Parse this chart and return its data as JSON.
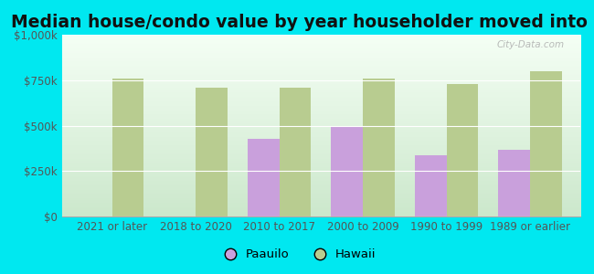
{
  "title": "Median house/condo value by year householder moved into unit",
  "categories": [
    "2021 or later",
    "2018 to 2020",
    "2010 to 2017",
    "2000 to 2009",
    "1990 to 1999",
    "1989 or earlier"
  ],
  "paauilo_values": [
    null,
    null,
    430000,
    500000,
    340000,
    370000
  ],
  "hawaii_values": [
    760000,
    710000,
    710000,
    760000,
    730000,
    800000
  ],
  "paauilo_color": "#c9a0dc",
  "hawaii_color": "#b8cc90",
  "background_color": "#00e8f0",
  "ylim": [
    0,
    1000000
  ],
  "yticks": [
    0,
    250000,
    500000,
    750000,
    1000000
  ],
  "ytick_labels": [
    "$0",
    "$250k",
    "$500k",
    "$750k",
    "$1,000k"
  ],
  "legend_paauilo": "Paauilo",
  "legend_hawaii": "Hawaii",
  "watermark": "City-Data.com",
  "bar_width": 0.38,
  "title_fontsize": 13.5,
  "tick_fontsize": 8.5,
  "legend_fontsize": 9.5,
  "grad_top": "#cce8cc",
  "grad_bottom": "#f5fff5"
}
